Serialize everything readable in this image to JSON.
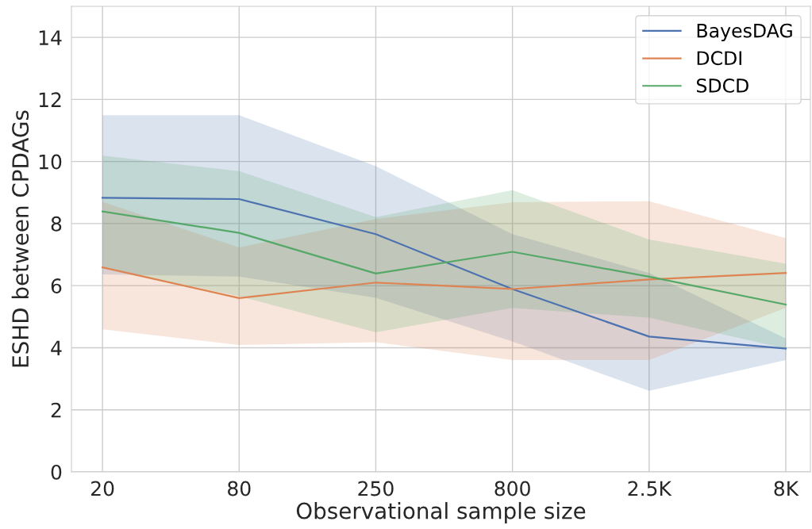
{
  "chart_data": {
    "type": "line",
    "xlabel": "Observational sample size",
    "ylabel": "ESHD between CPDAGs",
    "categories": [
      "20",
      "80",
      "250",
      "800",
      "2.5K",
      "8K"
    ],
    "series": [
      {
        "name": "BayesDAG",
        "color": "#4c72b0",
        "values": [
          8.83,
          8.79,
          7.66,
          5.89,
          4.36,
          3.97
        ],
        "lower": [
          6.36,
          6.29,
          5.61,
          4.2,
          2.61,
          3.6
        ],
        "upper": [
          11.49,
          11.49,
          9.85,
          7.66,
          6.41,
          4.3
        ]
      },
      {
        "name": "DCDI",
        "color": "#dd8452",
        "values": [
          6.59,
          5.6,
          6.1,
          5.89,
          6.2,
          6.41
        ],
        "lower": [
          4.59,
          4.09,
          4.18,
          3.6,
          3.6,
          5.28
        ],
        "upper": [
          8.7,
          7.23,
          8.15,
          8.69,
          8.72,
          7.53
        ]
      },
      {
        "name": "SDCD",
        "color": "#55a868",
        "values": [
          8.39,
          7.7,
          6.39,
          7.09,
          6.29,
          5.39
        ],
        "lower": [
          6.57,
          5.66,
          4.5,
          5.28,
          4.97,
          3.97
        ],
        "upper": [
          10.19,
          9.69,
          8.21,
          9.08,
          7.49,
          6.71
        ]
      }
    ],
    "ylim": [
      0,
      15
    ],
    "yticks": [
      0,
      2,
      4,
      6,
      8,
      10,
      12,
      14
    ],
    "grid": true,
    "legend": "top right",
    "marker": "none",
    "line_style": "solid"
  }
}
